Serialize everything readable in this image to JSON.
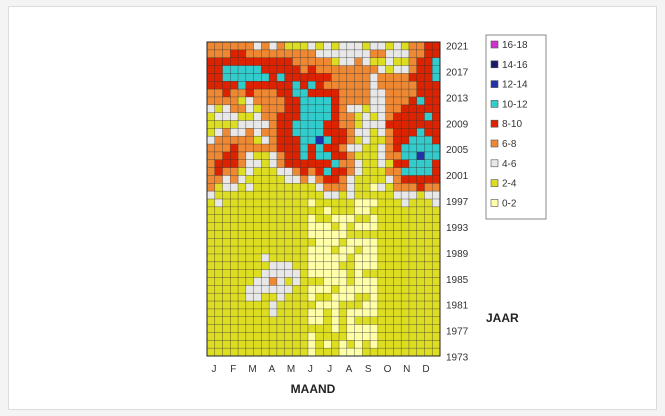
{
  "chart_data": {
    "type": "heatmap",
    "xlabel": "MAAND",
    "ylabel": "JAAR",
    "x_tick_labels": [
      "J",
      "F",
      "M",
      "A",
      "M",
      "J",
      "J",
      "A",
      "S",
      "O",
      "N",
      "D"
    ],
    "y_tick_labels": [
      "2021",
      "2017",
      "2013",
      "2009",
      "2005",
      "2001",
      "1997",
      "1993",
      "1989",
      "1985",
      "1981",
      "1977",
      "1973"
    ],
    "year_range": [
      1973,
      2021
    ],
    "grid": true,
    "legend_position": "right",
    "legend": [
      {
        "label": "16-18",
        "color": "#cc33cc"
      },
      {
        "label": "14-16",
        "color": "#1a1a66"
      },
      {
        "label": "12-14",
        "color": "#2233aa"
      },
      {
        "label": "10-12",
        "color": "#33cccc"
      },
      {
        "label": "8-10",
        "color": "#dd2200"
      },
      {
        "label": "6-8",
        "color": "#ee8833"
      },
      {
        "label": "4-6",
        "color": "#e8e8e8"
      },
      {
        "label": "2-4",
        "color": "#dddd22"
      },
      {
        "label": "0-2",
        "color": "#ffffaa"
      }
    ]
  }
}
